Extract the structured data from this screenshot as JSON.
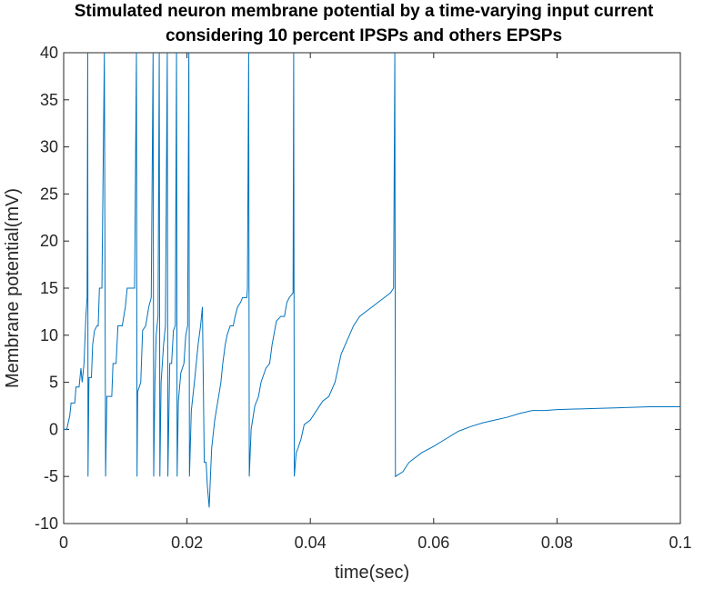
{
  "chart_data": {
    "type": "line",
    "title": [
      "Stimulated neuron membrane potential by a time-varying input current",
      "considering 10 percent IPSPs and others EPSPs"
    ],
    "x_label": "time(sec)",
    "y_label": "Membrane potential(mV)",
    "xlim": [
      0,
      0.1
    ],
    "xticks": [
      0,
      0.02,
      0.04,
      0.06,
      0.08,
      0.1
    ],
    "ylim": [
      -10,
      40
    ],
    "yticks": [
      -10,
      -5,
      0,
      5,
      10,
      15,
      20,
      25,
      30,
      35,
      40
    ],
    "grid": false,
    "series": [
      {
        "color": "#0072bd",
        "x": [
          0,
          0.0005,
          0.001,
          0.0012,
          0.0018,
          0.002,
          0.0025,
          0.0028,
          0.003,
          0.0033,
          0.0036,
          0.0038,
          0.0039,
          0.00395,
          0.0041,
          0.0045,
          0.0047,
          0.005,
          0.0054,
          0.0056,
          0.0058,
          0.0062,
          0.0066,
          0.0068,
          0.007,
          0.0078,
          0.008,
          0.0085,
          0.0088,
          0.0095,
          0.01,
          0.0103,
          0.0115,
          0.0118,
          0.0119,
          0.012,
          0.0125,
          0.0128,
          0.0133,
          0.0138,
          0.0142,
          0.0145,
          0.0146,
          0.0148,
          0.015,
          0.0153,
          0.0155,
          0.0156,
          0.0158,
          0.0162,
          0.0165,
          0.0168,
          0.0169,
          0.0172,
          0.0175,
          0.0178,
          0.0181,
          0.0183,
          0.0184,
          0.0186,
          0.019,
          0.0195,
          0.0198,
          0.0201,
          0.0203,
          0.0204,
          0.0207,
          0.0212,
          0.0218,
          0.0222,
          0.0225,
          0.0228,
          0.0231,
          0.0233,
          0.0236,
          0.0238,
          0.024,
          0.0245,
          0.025,
          0.0255,
          0.0258,
          0.0262,
          0.0265,
          0.027,
          0.0275,
          0.0278,
          0.0282,
          0.0287,
          0.029,
          0.0297,
          0.0298,
          0.03,
          0.0301,
          0.0304,
          0.031,
          0.0316,
          0.032,
          0.0328,
          0.0334,
          0.0338,
          0.0345,
          0.0352,
          0.0358,
          0.0362,
          0.0366,
          0.0372,
          0.0373,
          0.0374,
          0.0377,
          0.038,
          0.0385,
          0.039,
          0.04,
          0.041,
          0.042,
          0.043,
          0.044,
          0.045,
          0.046,
          0.047,
          0.048,
          0.049,
          0.05,
          0.051,
          0.052,
          0.053,
          0.0535,
          0.0537,
          0.0538,
          0.055,
          0.056,
          0.058,
          0.06,
          0.062,
          0.064,
          0.066,
          0.068,
          0.07,
          0.072,
          0.074,
          0.076,
          0.078,
          0.08,
          0.085,
          0.09,
          0.095,
          0.1
        ],
        "values": [
          0,
          0,
          1.5,
          2.8,
          2.8,
          4.5,
          4.5,
          6.5,
          5,
          7,
          12,
          14,
          40,
          -5,
          5.5,
          5.5,
          9,
          10.5,
          11,
          11,
          15,
          15,
          40,
          -5,
          3.5,
          3.5,
          7,
          7,
          11,
          11,
          13,
          15,
          15,
          40,
          -5,
          4,
          5,
          10.5,
          11,
          13,
          14,
          40,
          -5,
          5,
          10,
          12,
          40,
          -5,
          5,
          9,
          11,
          40,
          -5,
          7,
          7,
          10.5,
          11,
          40,
          -5,
          3,
          6,
          7,
          10,
          11,
          40,
          -5,
          2,
          5,
          9,
          11,
          13,
          -3.5,
          -3.5,
          -6,
          -8.3,
          -5,
          -2,
          1,
          3,
          5,
          7,
          9,
          10,
          11,
          11,
          12,
          13,
          13.5,
          14,
          14,
          15,
          40,
          -5,
          0,
          2.5,
          3.5,
          5,
          6.5,
          7,
          9,
          11.5,
          12,
          12,
          13.5,
          14,
          14.5,
          40,
          -5,
          -2.5,
          -2,
          -1,
          0.5,
          1,
          2,
          3,
          3.5,
          5,
          8,
          9.5,
          11,
          12,
          12.5,
          13,
          13.5,
          14,
          14.5,
          15,
          40,
          -5,
          -4.5,
          -3.5,
          -2.5,
          -1.8,
          -1,
          -0.2,
          0.3,
          0.7,
          1,
          1.3,
          1.7,
          2,
          2,
          2.1,
          2.2,
          2.3,
          2.4,
          2.4
        ]
      }
    ]
  }
}
